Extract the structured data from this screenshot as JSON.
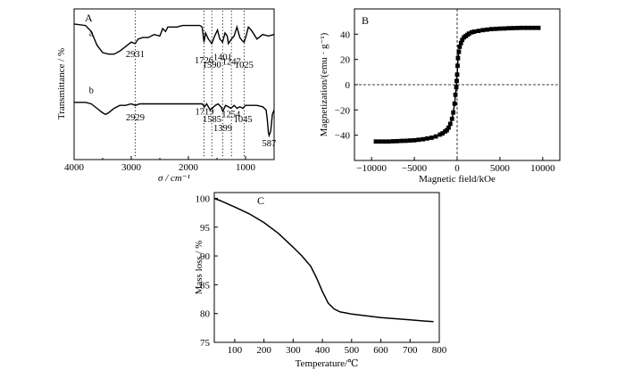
{
  "chart_data": [
    {
      "type": "line",
      "panel_label": "A",
      "xlabel": "σ / cm⁻¹",
      "ylabel": "Transmittance / %",
      "xlim": [
        4000,
        500
      ],
      "x_ticks": [
        "4000",
        "3000",
        "2000",
        "1000"
      ],
      "x_tick_values": [
        4000,
        3000,
        2000,
        1000
      ],
      "grid": false,
      "series": [
        {
          "name": "a",
          "x": [
            4000,
            3800,
            3700,
            3600,
            3500,
            3400,
            3300,
            3200,
            3100,
            3000,
            2931,
            2880,
            2800,
            2700,
            2600,
            2500,
            2450,
            2400,
            2360,
            2300,
            2200,
            2100,
            2000,
            1900,
            1800,
            1760,
            1726,
            1700,
            1650,
            1590,
            1540,
            1490,
            1450,
            1401,
            1360,
            1320,
            1300,
            1247,
            1200,
            1150,
            1100,
            1060,
            1025,
            990,
            950,
            900,
            800,
            700,
            600,
            500
          ],
          "y": [
            90,
            89,
            85,
            76,
            71,
            70,
            70,
            72,
            75,
            78,
            77,
            80,
            81,
            81,
            83,
            82,
            87,
            85,
            88,
            88,
            88,
            89,
            89,
            89,
            89,
            88,
            78,
            84,
            80,
            77,
            82,
            86,
            80,
            78,
            84,
            82,
            77,
            80,
            82,
            88,
            81,
            79,
            78,
            82,
            88,
            86,
            80,
            83,
            82,
            83
          ]
        },
        {
          "name": "b",
          "x": [
            4000,
            3800,
            3700,
            3600,
            3500,
            3450,
            3400,
            3300,
            3200,
            3100,
            3000,
            2929,
            2850,
            2700,
            2500,
            2300,
            2100,
            1900,
            1760,
            1719,
            1680,
            1620,
            1585,
            1530,
            1480,
            1430,
            1399,
            1350,
            1300,
            1254,
            1200,
            1150,
            1100,
            1045,
            1000,
            950,
            900,
            800,
            700,
            640,
            620,
            600,
            587,
            560,
            530,
            500
          ],
          "y": [
            38,
            38,
            37,
            34,
            31,
            30,
            31,
            34,
            36,
            36,
            37,
            36,
            37,
            37,
            37,
            37,
            37,
            37,
            37,
            35,
            37,
            33,
            34,
            36,
            37,
            35,
            32,
            36,
            35,
            34,
            36,
            34,
            35,
            34,
            36,
            36,
            36,
            36,
            35,
            33,
            27,
            18,
            16,
            19,
            30,
            33
          ]
        }
      ],
      "annotations": [
        {
          "text": "a",
          "x": 3700,
          "y": 82
        },
        {
          "text": "b",
          "x": 3700,
          "y": 44
        },
        {
          "text": "2931",
          "x": 2931,
          "y": 68
        },
        {
          "text": "1726",
          "x": 1726,
          "y": 64
        },
        {
          "text": "1590",
          "x": 1590,
          "y": 61
        },
        {
          "text": "1401",
          "x": 1401,
          "y": 66
        },
        {
          "text": "1247",
          "x": 1247,
          "y": 63
        },
        {
          "text": "1025",
          "x": 1025,
          "y": 61
        },
        {
          "text": "2929",
          "x": 2929,
          "y": 26
        },
        {
          "text": "1719",
          "x": 1719,
          "y": 30
        },
        {
          "text": "1585",
          "x": 1585,
          "y": 25
        },
        {
          "text": "1254",
          "x": 1254,
          "y": 28
        },
        {
          "text": "1399",
          "x": 1399,
          "y": 19
        },
        {
          "text": "1045",
          "x": 1045,
          "y": 25
        },
        {
          "text": "587",
          "x": 587,
          "y": 9
        }
      ],
      "reference_lines_x": [
        2931,
        1726,
        1590,
        1401,
        1247,
        1025
      ]
    },
    {
      "type": "scatter",
      "panel_label": "B",
      "xlabel": "Magnetic field/kOe",
      "ylabel": "Magnetization/(emu · g⁻¹)",
      "xlim": [
        -12000,
        12000
      ],
      "ylim": [
        -60,
        60
      ],
      "x_ticks": [
        "−10000",
        "−5000",
        "0",
        "5000",
        "10000"
      ],
      "x_tick_values": [
        -10000,
        -5000,
        0,
        5000,
        10000
      ],
      "y_ticks": [
        "−40",
        "−20",
        "0",
        "20",
        "40"
      ],
      "y_tick_values": [
        -40,
        -20,
        0,
        20,
        40
      ],
      "grid": false,
      "reference_lines": {
        "x": 0,
        "y": 0
      },
      "series": [
        {
          "x": [
            -9500,
            -9000,
            -8500,
            -8000,
            -7500,
            -7000,
            -6500,
            -6000,
            -5500,
            -5000,
            -4500,
            -4000,
            -3500,
            -3000,
            -2500,
            -2000,
            -1700,
            -1400,
            -1200,
            -1000,
            -800,
            -600,
            -450,
            -300,
            -200,
            -100,
            -50,
            0,
            50,
            100,
            200,
            300,
            450,
            600,
            800,
            1000,
            1200,
            1400,
            1700,
            2000,
            2500,
            3000,
            3500,
            4000,
            4500,
            5000,
            5500,
            6000,
            6500,
            7000,
            7500,
            8000,
            8500,
            9000,
            9500
          ],
          "y": [
            -45,
            -45,
            -45,
            -45,
            -44.8,
            -44.7,
            -44.5,
            -44.4,
            -44.2,
            -44,
            -43.6,
            -43.2,
            -42.6,
            -42,
            -41,
            -39.5,
            -38.5,
            -37,
            -36,
            -34,
            -31,
            -27,
            -22,
            -15,
            -8,
            -2,
            3,
            8,
            15,
            21,
            26,
            30,
            33,
            35.5,
            37.5,
            38.5,
            39.5,
            40.5,
            41.5,
            42,
            42.6,
            43.2,
            43.6,
            44,
            44.2,
            44.4,
            44.5,
            44.7,
            44.8,
            44.9,
            45,
            45,
            45,
            45,
            45
          ]
        }
      ]
    },
    {
      "type": "line",
      "panel_label": "C",
      "xlabel": "Temperature/℃",
      "ylabel": "Mass loss / %",
      "xlim": [
        30,
        800
      ],
      "ylim": [
        75,
        101
      ],
      "x_ticks": [
        "100",
        "200",
        "300",
        "400",
        "500",
        "600",
        "700",
        "800"
      ],
      "x_tick_values": [
        100,
        200,
        300,
        400,
        500,
        600,
        700,
        800
      ],
      "y_ticks": [
        "75",
        "80",
        "85",
        "90",
        "95",
        "100"
      ],
      "y_tick_values": [
        75,
        80,
        85,
        90,
        95,
        100
      ],
      "grid": false,
      "series": [
        {
          "x": [
            30,
            50,
            100,
            150,
            200,
            250,
            300,
            330,
            360,
            380,
            400,
            420,
            440,
            460,
            480,
            500,
            550,
            600,
            650,
            700,
            750,
            780
          ],
          "y": [
            100,
            99.6,
            98.5,
            97.3,
            95.8,
            93.9,
            91.5,
            90,
            88.2,
            86.2,
            83.8,
            81.8,
            80.8,
            80.3,
            80.1,
            79.9,
            79.6,
            79.3,
            79.1,
            78.9,
            78.7,
            78.6
          ]
        }
      ]
    }
  ]
}
